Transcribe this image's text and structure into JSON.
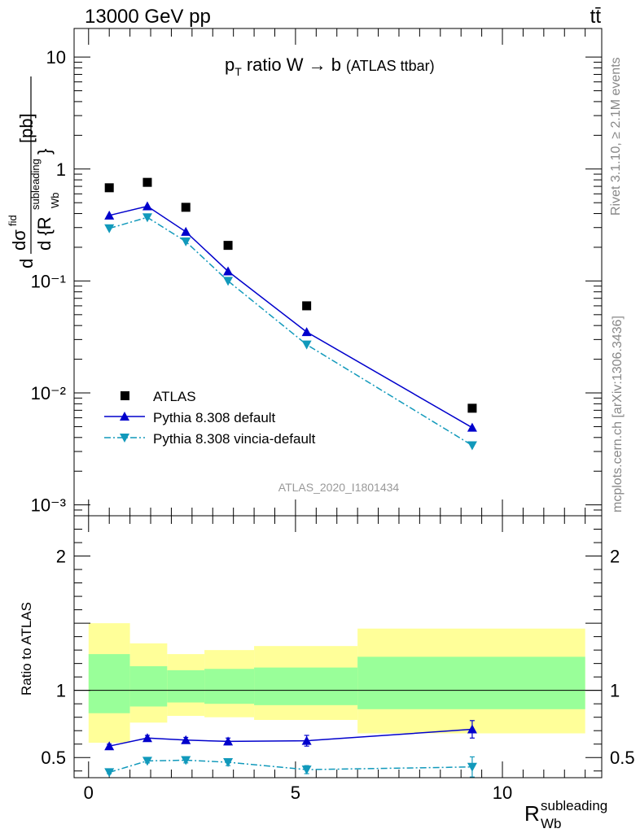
{
  "header": {
    "left": "13000 GeV pp",
    "right": "tt̄"
  },
  "side_labels": {
    "rivet": "Rivet 3.1.10, ≥ 2.1M events",
    "mcplots": "mcplots.cern.ch [arXiv:1306.3436]"
  },
  "chart_data": [
    {
      "type": "line",
      "title": "p_T ratio W → b (ATLAS ttbar)",
      "title_main": "ratio W → b",
      "title_small": "(ATLAS ttbar)",
      "ylabel": "dσ^fid / d{R_Wb^subleading} [pb]",
      "ylabel_units": "[pb]",
      "analysis_label": "ATLAS_2020_I1801434",
      "yscale": "log",
      "ylim": [
        0.0008,
        18
      ],
      "xlim": [
        -0.35,
        12.4
      ],
      "y_ticks": [
        {
          "v": 10,
          "label": "10"
        },
        {
          "v": 1,
          "label": "1"
        },
        {
          "v": 0.1,
          "label": "10⁻¹"
        },
        {
          "v": 0.01,
          "label": "10⁻²"
        },
        {
          "v": 0.001,
          "label": "10⁻³"
        }
      ],
      "legend_position": "bottom-left",
      "series": [
        {
          "name": "ATLAS",
          "color": "#000000",
          "marker": "square",
          "x": [
            0.5,
            1.42,
            2.35,
            3.37,
            5.27,
            9.27
          ],
          "y": [
            0.68,
            0.76,
            0.455,
            0.208,
            0.06,
            0.0073
          ]
        },
        {
          "name": "Pythia 8.308 default",
          "color": "#0000cc",
          "marker": "triangle-up",
          "line": "solid",
          "x": [
            0.5,
            1.42,
            2.35,
            3.37,
            5.27,
            9.27
          ],
          "y": [
            0.385,
            0.465,
            0.275,
            0.122,
            0.035,
            0.0049
          ]
        },
        {
          "name": "Pythia 8.308 vincia-default",
          "color": "#1199bb",
          "marker": "triangle-down",
          "line": "dashdot",
          "x": [
            0.5,
            1.42,
            2.35,
            3.37,
            5.27,
            9.27
          ],
          "y": [
            0.295,
            0.37,
            0.225,
            0.1,
            0.027,
            0.0034
          ]
        }
      ]
    },
    {
      "type": "line",
      "ylabel": "Ratio to ATLAS",
      "xlabel": "R_Wb^subleading",
      "xlabel_main": "R",
      "xlabel_sub": "Wb",
      "xlabel_sup": "subleading",
      "ylim": [
        0.35,
        2.3
      ],
      "xlim": [
        -0.35,
        12.4
      ],
      "y_ticks": [
        {
          "v": 2,
          "label": "2"
        },
        {
          "v": 1,
          "label": "1"
        },
        {
          "v": 0.5,
          "label": "0.5"
        }
      ],
      "x_ticks": [
        {
          "v": 0,
          "label": "0"
        },
        {
          "v": 5,
          "label": "5"
        },
        {
          "v": 10,
          "label": "10"
        }
      ],
      "bands": [
        {
          "x0": 0.0,
          "x1": 1.0,
          "green": [
            0.83,
            1.27
          ],
          "yellow": [
            0.61,
            1.5
          ]
        },
        {
          "x0": 1.0,
          "x1": 1.9,
          "green": [
            0.88,
            1.18
          ],
          "yellow": [
            0.76,
            1.35
          ]
        },
        {
          "x0": 1.9,
          "x1": 2.8,
          "green": [
            0.91,
            1.15
          ],
          "yellow": [
            0.81,
            1.27
          ]
        },
        {
          "x0": 2.8,
          "x1": 4.0,
          "green": [
            0.9,
            1.16
          ],
          "yellow": [
            0.8,
            1.3
          ]
        },
        {
          "x0": 4.0,
          "x1": 6.5,
          "green": [
            0.89,
            1.17
          ],
          "yellow": [
            0.78,
            1.33
          ]
        },
        {
          "x0": 6.5,
          "x1": 12.0,
          "green": [
            0.86,
            1.25
          ],
          "yellow": [
            0.68,
            1.46
          ]
        }
      ],
      "series": [
        {
          "name": "Pythia 8.308 default",
          "color": "#0000cc",
          "marker": "triangle-up",
          "line": "solid",
          "x": [
            0.5,
            1.42,
            2.35,
            3.37,
            5.27,
            9.27
          ],
          "y": [
            0.585,
            0.645,
            0.63,
            0.62,
            0.625,
            0.71
          ],
          "err": [
            0.015,
            0.02,
            0.02,
            0.025,
            0.04,
            0.065
          ]
        },
        {
          "name": "Pythia 8.308 vincia-default",
          "color": "#1199bb",
          "marker": "triangle-down",
          "line": "dashdot",
          "x": [
            0.5,
            1.42,
            2.35,
            3.37,
            5.27,
            9.27
          ],
          "y": [
            0.39,
            0.475,
            0.48,
            0.465,
            0.41,
            0.43
          ],
          "err": [
            0.01,
            0.015,
            0.02,
            0.025,
            0.03,
            0.075
          ]
        }
      ]
    }
  ]
}
